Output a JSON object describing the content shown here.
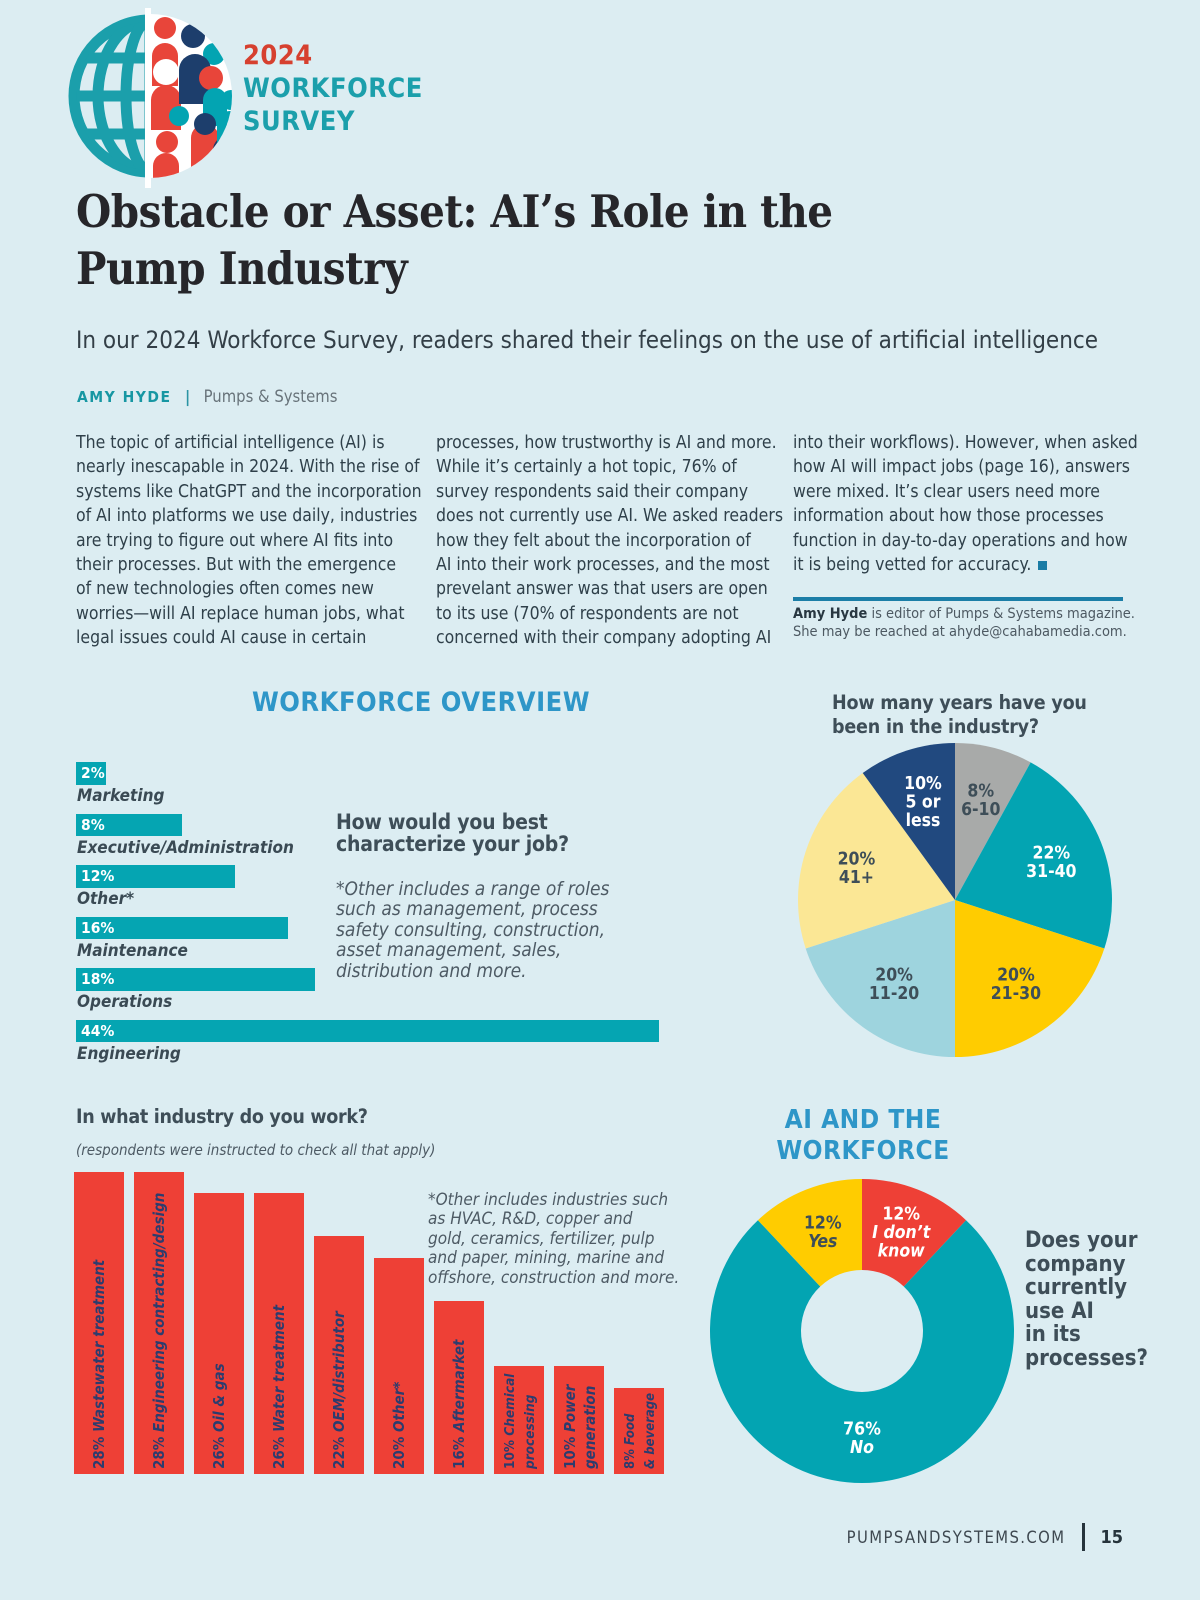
{
  "header": {
    "year": "2024",
    "brand_line1": "WORKFORCE",
    "brand_line2": "SURVEY"
  },
  "article": {
    "title_lines": [
      "Obstacle or Asset: AI’s Role in the",
      "Pump Industry"
    ],
    "standfirst": "In our 2024 Workforce Survey, readers shared their feelings on the use of artificial intelligence",
    "byline": {
      "author": "AMY HYDE",
      "separator": "|",
      "publication": "Pumps & Systems"
    },
    "columns": [
      {
        "lines": [
          "The topic of artificial intelligence (AI) is",
          "nearly inescapable in 2024. With the rise of",
          "systems like ChatGPT and the incorporation",
          "of AI into platforms we use daily, industries",
          "are trying to figure out where AI fits into",
          "their processes. But with the emergence",
          "of new technologies often comes new",
          "worries—will AI replace human jobs, what",
          "legal issues could AI cause in certain"
        ]
      },
      {
        "lines": [
          "processes, how trustworthy is AI and more.",
          "While it’s certainly a hot topic, 76% of",
          "survey respondents said their company",
          "does not currently use AI. We asked readers",
          "how they felt about the incorporation of",
          "AI into their work processes, and the most",
          "prevelant answer was that users are open",
          "to its use (70% of respondents are not",
          "concerned with their company adopting AI"
        ]
      },
      {
        "lines": [
          "into their workflows). However, when asked",
          "how AI will impact jobs (page 16), answers",
          "were mixed. It’s clear users need more",
          "information about how those processes",
          "function in day-to-day operations and how",
          "it is being vetted for accuracy."
        ],
        "end_marker": true
      }
    ],
    "bio": {
      "name": "Amy Hyde",
      "line1_rest": " is editor of Pumps & Systems magazine.",
      "line2": "She may be reached at ahyde@cahabamedia.com."
    }
  },
  "sections": {
    "workforce_overview": "WORKFORCE OVERVIEW",
    "ai_workforce_lines": [
      "AI AND THE",
      "WORKFORCE"
    ]
  },
  "footer": {
    "site": "PUMPSANDSYSTEMS.COM",
    "page_number": "15"
  },
  "chart_data": [
    {
      "id": "job_roles",
      "type": "bar",
      "orientation": "horizontal",
      "title_lines": [
        "How would you best",
        "characterize your job?"
      ],
      "note_lines": [
        "*Other includes a range of roles",
        "such as management, process",
        "safety consulting, construction,",
        "asset management, sales,",
        "distribution and more."
      ],
      "categories": [
        "Marketing",
        "Executive/Administration",
        "Other*",
        "Maintenance",
        "Operations",
        "Engineering"
      ],
      "values": [
        2,
        8,
        12,
        16,
        18,
        44
      ],
      "unit": "%",
      "xlim": [
        0,
        44
      ],
      "bar_color": "#05a5b2",
      "value_label_color": "#ffffff"
    },
    {
      "id": "years_in_industry",
      "type": "pie",
      "title_lines": [
        "How many years have you",
        "been in the industry?"
      ],
      "start_angle_deg": 0,
      "clockwise": true,
      "slices": [
        {
          "label": "6-10",
          "label_lines": [
            "6-10"
          ],
          "value": 8,
          "color": "#a8aaa9",
          "text_color": "#3e4e58"
        },
        {
          "label": "31-40",
          "label_lines": [
            "31-40"
          ],
          "value": 22,
          "color": "#03a4b2",
          "text_color": "#ffffff"
        },
        {
          "label": "21-30",
          "label_lines": [
            "21-30"
          ],
          "value": 20,
          "color": "#ffcc00",
          "text_color": "#3e4e58"
        },
        {
          "label": "11-20",
          "label_lines": [
            "11-20"
          ],
          "value": 20,
          "color": "#9ed4de",
          "text_color": "#3e4e58"
        },
        {
          "label": "41+",
          "label_lines": [
            "41+"
          ],
          "value": 20,
          "color": "#fbe795",
          "text_color": "#3e4e58"
        },
        {
          "label": "5 or less",
          "label_lines": [
            "5 or",
            "less"
          ],
          "value": 10,
          "color": "#21497f",
          "text_color": "#ffffff"
        }
      ]
    },
    {
      "id": "industry",
      "type": "bar",
      "orientation": "vertical",
      "title": "In what industry do you work?",
      "subtitle": "(respondents were instructed to check all that apply)",
      "note_lines": [
        "*Other includes industries such",
        "as HVAC, R&D, copper and",
        "gold, ceramics, fertilizer, pulp",
        "and paper, mining, marine and",
        "offshore, construction and more."
      ],
      "unit": "%",
      "ylim": [
        0,
        28
      ],
      "bar_color": "#ee4036",
      "label_color": "#2c3c6e",
      "bars": [
        {
          "value": 28,
          "pct": "28%",
          "label_lines": [
            "Wastewater treatment"
          ]
        },
        {
          "value": 28,
          "pct": "28%",
          "label_lines": [
            "Engineering contracting/design"
          ]
        },
        {
          "value": 26,
          "pct": "26%",
          "label_lines": [
            "Oil & gas"
          ]
        },
        {
          "value": 26,
          "pct": "26%",
          "label_lines": [
            "Water treatment"
          ]
        },
        {
          "value": 22,
          "pct": "22%",
          "label_lines": [
            "OEM/distributor"
          ]
        },
        {
          "value": 20,
          "pct": "20%",
          "label_lines": [
            "Other*"
          ]
        },
        {
          "value": 16,
          "pct": "16%",
          "label_lines": [
            "Aftermarket"
          ]
        },
        {
          "value": 10,
          "pct": "10%",
          "label_lines": [
            "Chemical",
            "processing"
          ]
        },
        {
          "value": 10,
          "pct": "10%",
          "label_lines": [
            "Power",
            "generation"
          ]
        },
        {
          "value": 8,
          "pct": "8%",
          "label_lines": [
            "Food",
            "& beverage"
          ]
        }
      ]
    },
    {
      "id": "ai_usage",
      "type": "donut",
      "question_lines": [
        "Does your",
        "company",
        "currently",
        "use AI",
        "in its",
        "processes?"
      ],
      "start_angle_deg": 0,
      "clockwise": true,
      "slices": [
        {
          "label": "I don't know",
          "value_text": "12%",
          "label_lines": [
            "I don’t",
            "know"
          ],
          "value": 12,
          "color": "#ee4036",
          "text_color": "#ffffff"
        },
        {
          "label": "No",
          "value_text": "76%",
          "label_lines": [
            "No"
          ],
          "value": 76,
          "color": "#03a4b2",
          "text_color": "#ffffff"
        },
        {
          "label": "Yes",
          "value_text": "12%",
          "label_lines": [
            "Yes"
          ],
          "value": 12,
          "color": "#ffcc00",
          "text_color": "#3e4e58"
        }
      ]
    }
  ]
}
